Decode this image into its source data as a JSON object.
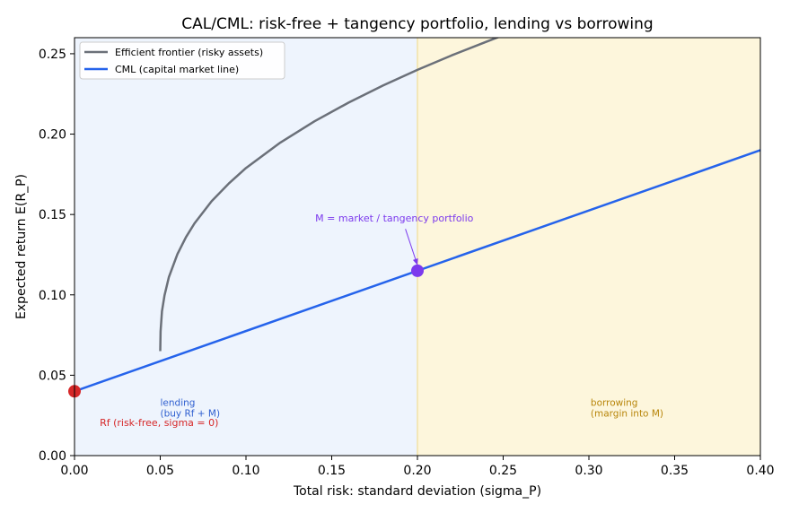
{
  "chart_data": {
    "type": "line",
    "title": "CAL/CML: risk-free + tangency portfolio, lending vs borrowing",
    "xlabel": "Total risk: standard deviation (sigma_P)",
    "ylabel": "Expected return E(R_P)",
    "xlim": [
      0.0,
      0.4
    ],
    "ylim": [
      0.0,
      0.26
    ],
    "xticks": [
      0.0,
      0.05,
      0.1,
      0.15,
      0.2,
      0.25,
      0.3,
      0.35,
      0.4
    ],
    "yticks": [
      0.0,
      0.05,
      0.1,
      0.15,
      0.2,
      0.25
    ],
    "xtick_labels": [
      "0.00",
      "0.05",
      "0.10",
      "0.15",
      "0.20",
      "0.25",
      "0.30",
      "0.35",
      "0.40"
    ],
    "ytick_labels": [
      "0.00",
      "0.05",
      "0.10",
      "0.15",
      "0.20",
      "0.25"
    ],
    "legend_position": "top-left",
    "grid": false,
    "regions": [
      {
        "label": "lending\n(buy Rf + M)",
        "x_from": 0.0,
        "x_to": 0.2,
        "color": "#eef4fd",
        "label_color": "#2f5fd0"
      },
      {
        "label": "borrowing\n(margin into M)",
        "x_from": 0.2,
        "x_to": 0.4,
        "color": "#fdf6dc",
        "label_color": "#b8860b"
      }
    ],
    "series": [
      {
        "name": "Efficient frontier (risky assets)",
        "color": "#6b7079",
        "x": [
          0.05,
          0.0502,
          0.051,
          0.0525,
          0.055,
          0.06,
          0.065,
          0.07,
          0.08,
          0.09,
          0.1,
          0.12,
          0.14,
          0.16,
          0.18,
          0.2,
          0.22,
          0.24,
          0.25
        ],
        "y": [
          0.065,
          0.0773,
          0.0897,
          0.0997,
          0.1109,
          0.1253,
          0.1359,
          0.1445,
          0.1583,
          0.1693,
          0.1789,
          0.1947,
          0.208,
          0.2197,
          0.2303,
          0.24,
          0.249,
          0.2574,
          0.2615
        ]
      },
      {
        "name": "CML (capital market line)",
        "color": "#2563eb",
        "x": [
          0.0,
          0.4
        ],
        "y": [
          0.04,
          0.19
        ]
      }
    ],
    "points": [
      {
        "name": "Rf",
        "x": 0.0,
        "y": 0.04,
        "color": "#d62728",
        "label": "Rf (risk-free, sigma = 0)"
      },
      {
        "name": "M",
        "x": 0.2,
        "y": 0.115,
        "color": "#7c3aed",
        "label": "M = market / tangency portfolio"
      }
    ]
  }
}
